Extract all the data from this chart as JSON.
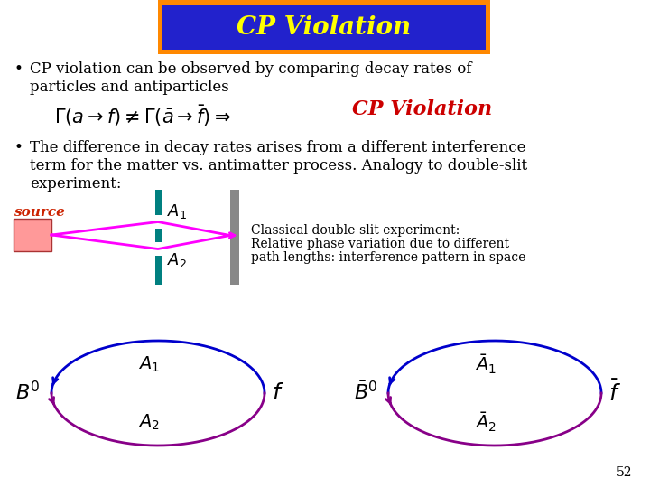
{
  "title": "CP Violation",
  "title_color": "#FFFF00",
  "title_bg": "#2222CC",
  "title_border": "#FF8800",
  "bullet1_line1": "CP violation can be observed by comparing decay rates of",
  "bullet1_line2": "particles and antiparticles",
  "formula_cp": "CP Violation",
  "formula_cp_color": "#CC0000",
  "bullet2_line1": "The difference in decay rates arises from a different interference",
  "bullet2_line2": "term for the matter vs. antimatter process. Analogy to double-slit",
  "bullet2_line3": "experiment:",
  "source_label": "source",
  "source_color": "#CC2200",
  "caption_line1": "Classical double-slit experiment:",
  "caption_line2": "Relative phase variation due to different",
  "caption_line3": "path lengths: interference pattern in space",
  "slide_number": "52",
  "bg_color": "#FFFFFF",
  "text_color": "#000000",
  "slit_color": "#008080",
  "wall_color": "#888888",
  "source_box_color": "#FF9999",
  "diamond_color": "#FF00FF",
  "arrow_blue": "#0000CC",
  "arrow_purple": "#880088",
  "circle_blue": "#0000CC",
  "circle_purple": "#880088"
}
